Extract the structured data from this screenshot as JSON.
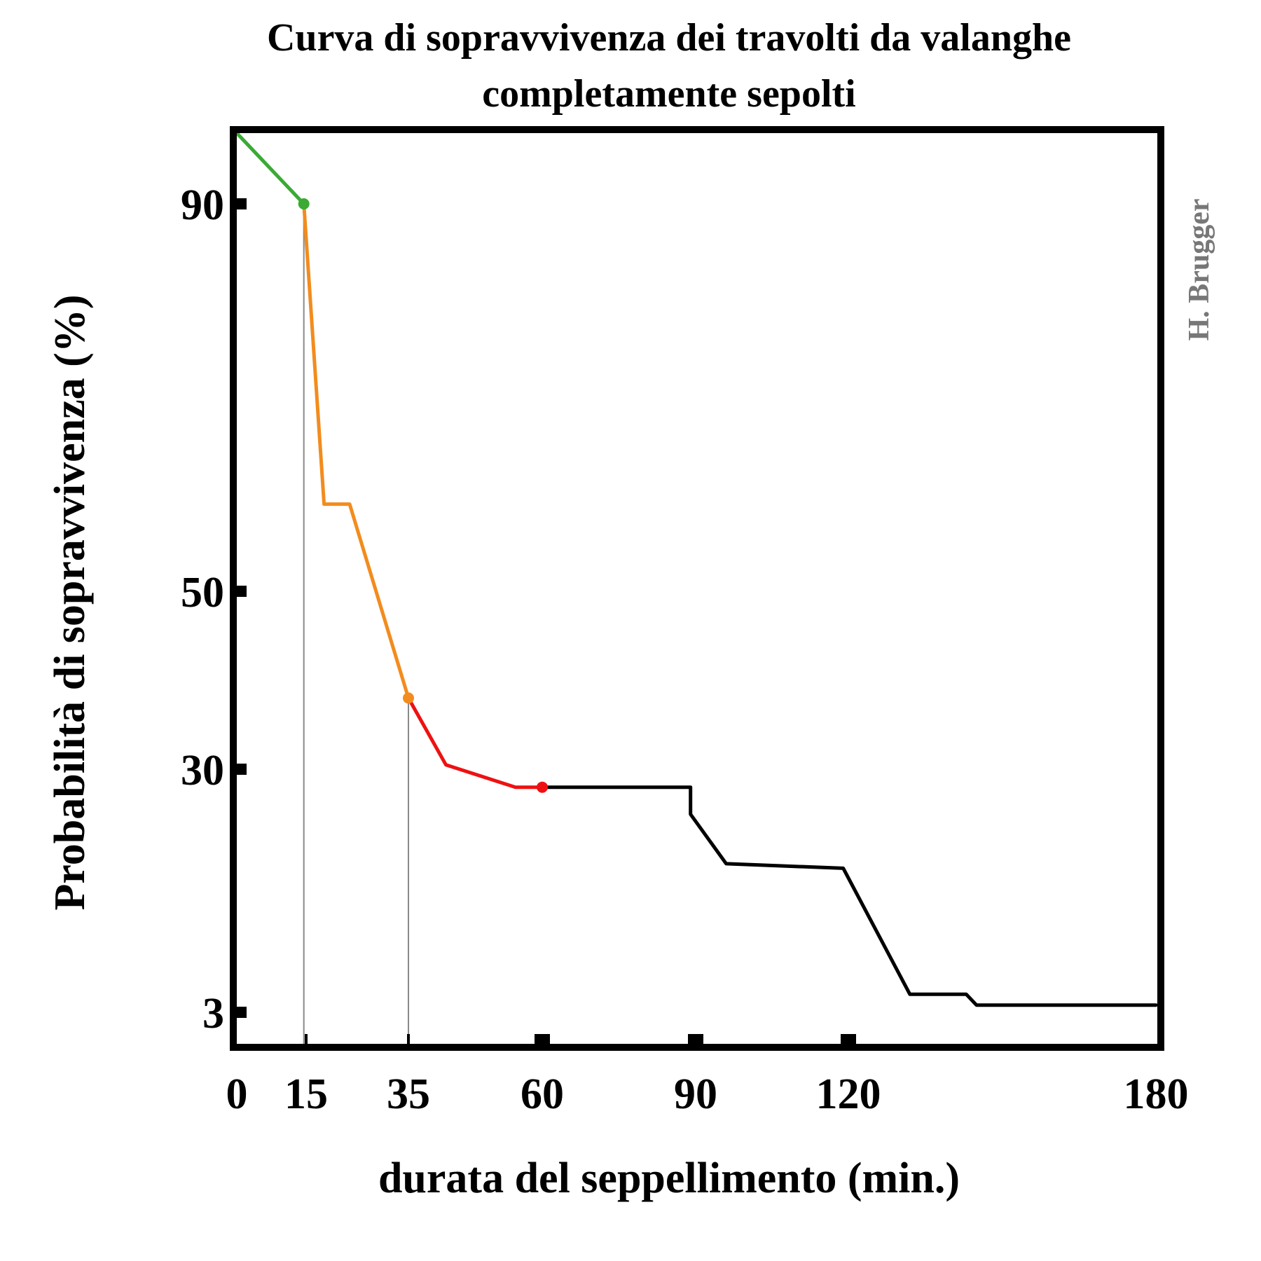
{
  "chart_data": {
    "type": "line",
    "title": "Curva di sopravvivenza dei travolti da valanghe",
    "subtitle": "completamente sepolti",
    "xlabel": "durata del seppellimento (min.)",
    "ylabel": "Probabilità di sopravvivenza (%)",
    "credit": "H. Brugger",
    "x_ticks": [
      0,
      15,
      35,
      60,
      90,
      120,
      180
    ],
    "y_ticks": [
      3,
      30,
      50,
      90
    ],
    "grid": false,
    "legend": "none",
    "series": [
      {
        "color": "#3aaa35",
        "points": [
          [
            0,
            97.5
          ],
          [
            14.5,
            90
          ]
        ]
      },
      {
        "color": "#f28c1e",
        "points": [
          [
            14.5,
            90
          ],
          [
            18.5,
            59
          ],
          [
            23.5,
            59
          ],
          [
            35,
            38
          ]
        ]
      },
      {
        "color": "#ee1111",
        "points": [
          [
            35,
            38
          ],
          [
            42,
            30.5
          ],
          [
            55,
            28
          ],
          [
            60,
            28
          ]
        ]
      },
      {
        "color": "#000000",
        "points": [
          [
            60,
            28
          ],
          [
            89,
            28
          ],
          [
            89,
            25
          ],
          [
            96,
            19.5
          ],
          [
            119,
            19
          ],
          [
            132,
            5
          ],
          [
            143,
            5
          ],
          [
            145,
            3.8
          ],
          [
            180,
            3.8
          ]
        ]
      }
    ],
    "markers": [
      {
        "x": 14.5,
        "y": 90,
        "color": "#3aaa35"
      },
      {
        "x": 35,
        "y": 38,
        "color": "#f28c1e"
      },
      {
        "x": 60,
        "y": 28,
        "color": "#ee1111"
      }
    ],
    "guide_lines": [
      {
        "x": 14.5,
        "y": 90
      },
      {
        "x": 35,
        "y": 38
      }
    ]
  }
}
